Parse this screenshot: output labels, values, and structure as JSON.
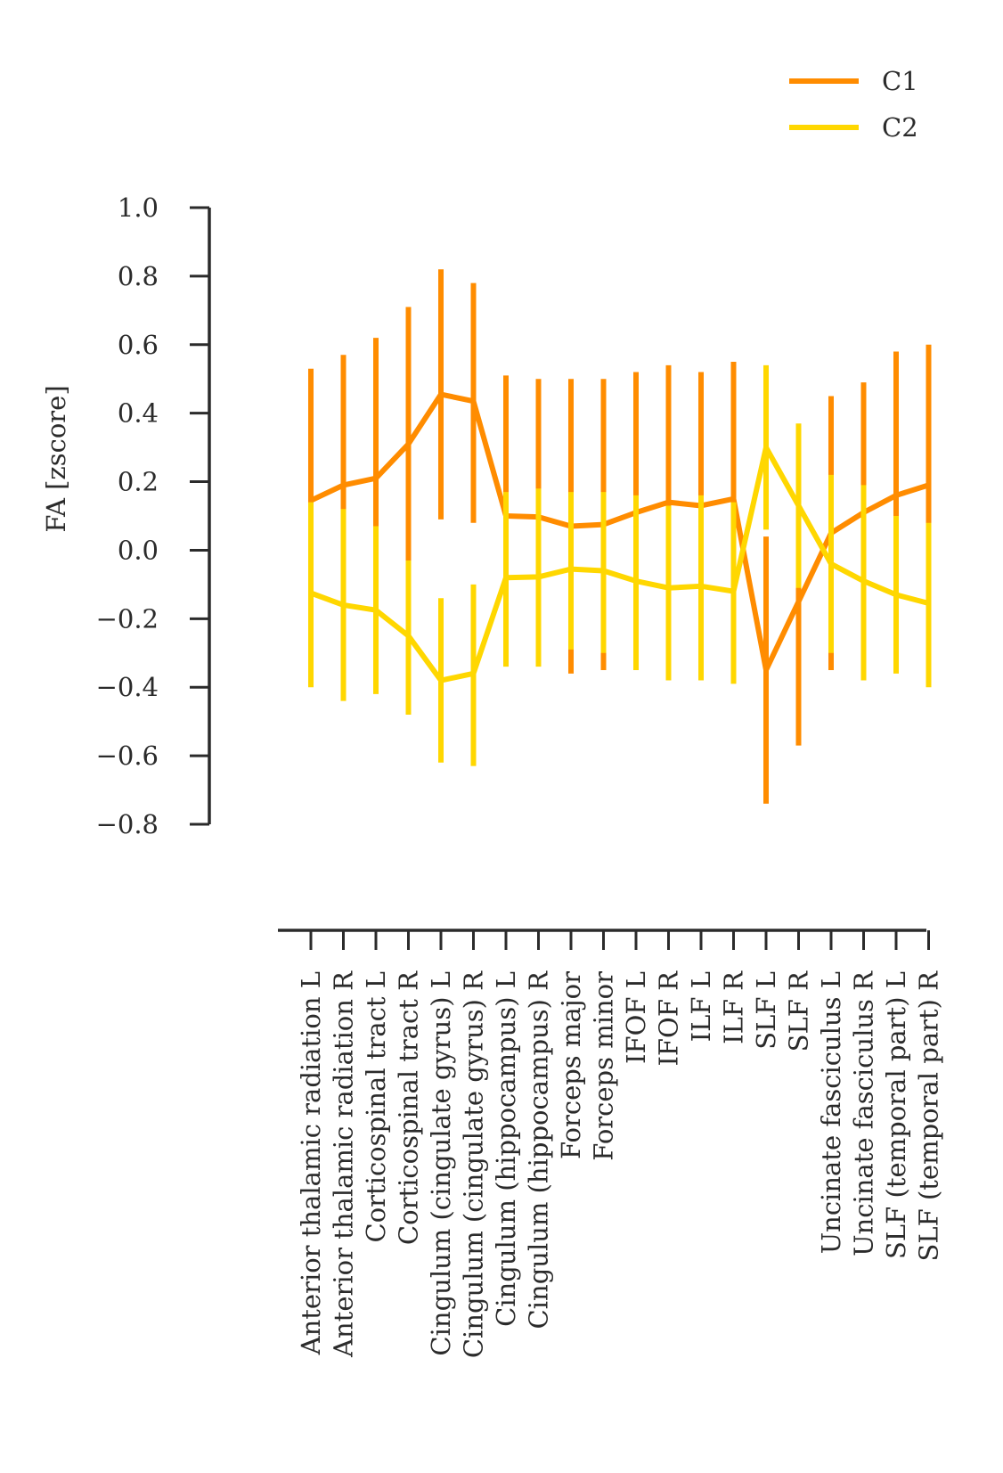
{
  "chart_data": {
    "type": "line",
    "title": "",
    "ylabel": "FA [zscore]",
    "xlabel": "",
    "ylim": [
      -0.8,
      1.0
    ],
    "yticks": [
      1.0,
      0.8,
      0.6,
      0.4,
      0.2,
      0.0,
      -0.2,
      -0.4,
      -0.6,
      -0.8
    ],
    "ytick_labels": [
      "1.0",
      "0.8",
      "0.6",
      "0.4",
      "0.2",
      "0.0",
      "−0.2",
      "−0.4",
      "−0.6",
      "−0.8"
    ],
    "grid": false,
    "legend_position": "top-right",
    "categories": [
      "Anterior thalamic radiation L",
      "Anterior thalamic radiation R",
      "Corticospinal tract L",
      "Corticospinal tract R",
      "Cingulum (cingulate gyrus) L",
      "Cingulum (cingulate gyrus) R",
      "Cingulum (hippocampus) L",
      "Cingulum (hippocampus) R",
      "Forceps major",
      "Forceps minor",
      "IFOF L",
      "IFOF R",
      "ILF L",
      "ILF R",
      "SLF L",
      "SLF R",
      "Uncinate fasciculus L",
      "Uncinate fasciculus R",
      "SLF (temporal part) L",
      "SLF (temporal part) R"
    ],
    "series": [
      {
        "name": "C1",
        "color": "#ff8c00",
        "values": [
          0.145,
          0.19,
          0.21,
          0.31,
          0.455,
          0.435,
          0.1,
          0.097,
          0.07,
          0.075,
          0.11,
          0.14,
          0.13,
          0.15,
          -0.35,
          -0.15,
          0.05,
          0.11,
          0.16,
          0.19
        ],
        "lower": [
          -0.24,
          -0.19,
          -0.2,
          -0.03,
          0.09,
          0.08,
          -0.3,
          -0.3,
          -0.36,
          -0.35,
          -0.3,
          -0.26,
          -0.26,
          -0.25,
          -0.74,
          -0.57,
          -0.35,
          -0.27,
          -0.26,
          -0.23
        ],
        "upper": [
          0.53,
          0.57,
          0.62,
          0.71,
          0.82,
          0.78,
          0.51,
          0.5,
          0.5,
          0.5,
          0.52,
          0.54,
          0.52,
          0.55,
          0.04,
          0.27,
          0.45,
          0.49,
          0.58,
          0.6
        ]
      },
      {
        "name": "C2",
        "color": "#ffd700",
        "values": [
          -0.125,
          -0.16,
          -0.175,
          -0.25,
          -0.38,
          -0.36,
          -0.08,
          -0.078,
          -0.055,
          -0.06,
          -0.09,
          -0.11,
          -0.105,
          -0.12,
          0.3,
          0.13,
          -0.04,
          -0.09,
          -0.13,
          -0.155
        ],
        "lower": [
          -0.4,
          -0.44,
          -0.42,
          -0.48,
          -0.62,
          -0.63,
          -0.34,
          -0.34,
          -0.29,
          -0.3,
          -0.35,
          -0.38,
          -0.38,
          -0.39,
          0.06,
          -0.11,
          -0.3,
          -0.38,
          -0.36,
          -0.4
        ],
        "upper": [
          0.14,
          0.12,
          0.07,
          -0.03,
          -0.14,
          -0.1,
          0.17,
          0.18,
          0.17,
          0.17,
          0.16,
          0.13,
          0.16,
          0.14,
          0.54,
          0.37,
          0.22,
          0.19,
          0.1,
          0.08
        ]
      }
    ]
  }
}
